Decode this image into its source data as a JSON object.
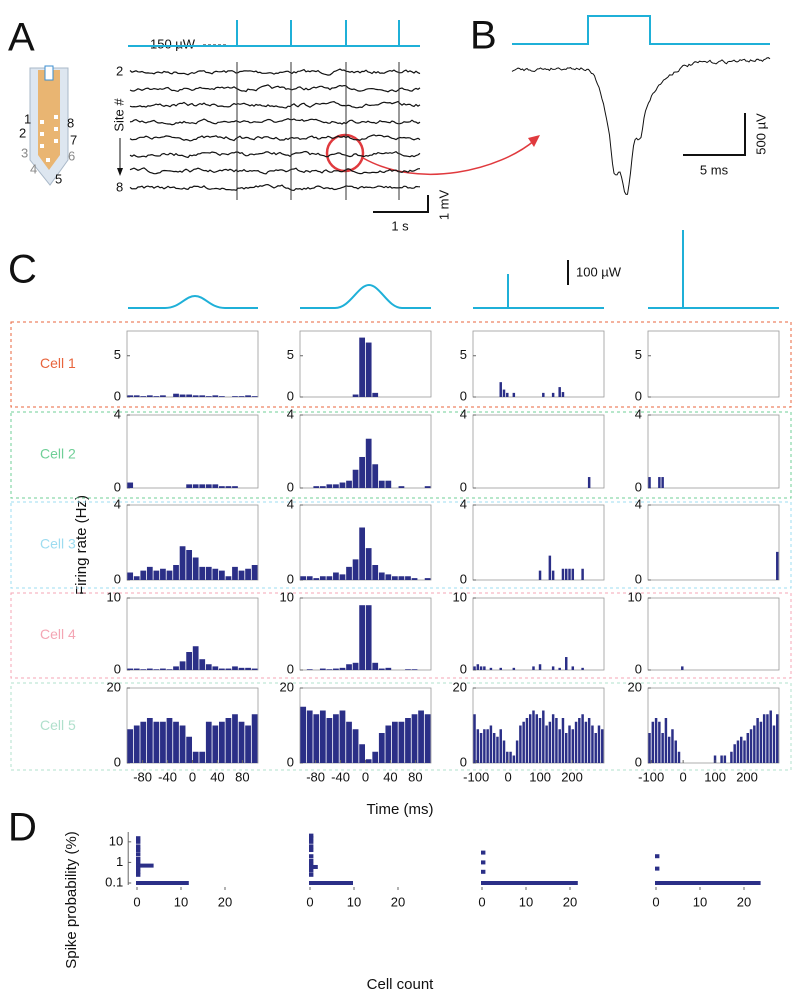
{
  "figure": {
    "letters": [
      "A",
      "B",
      "C",
      "D"
    ],
    "panel_a": {
      "power_label": "150 µW",
      "site_label": "Site #",
      "first_site": "2",
      "last_site": "8",
      "probe_sites": [
        "1",
        "2",
        "3",
        "4",
        "5",
        "6",
        "7",
        "8"
      ],
      "time_scale": "1 s",
      "volt_scale": "1 mV"
    },
    "panel_b": {
      "volt_scale": "500 µV",
      "time_scale": "5 ms"
    },
    "stimulus_scale": "100 µW"
  },
  "chart_data": [
    {
      "type": "bar",
      "ylabel": "Firing rate (Hz)",
      "xlabel": "Time (ms)",
      "color": "#2b2f87",
      "columns": [
        {
          "xlim": [
            -105,
            105
          ],
          "xticks": [
            -80,
            -40,
            0,
            40,
            80
          ]
        },
        {
          "xlim": [
            -105,
            105
          ],
          "xticks": [
            -80,
            -40,
            0,
            40,
            80
          ]
        },
        {
          "xlim": [
            -110,
            300
          ],
          "xticks": [
            -100,
            0,
            100,
            200
          ]
        },
        {
          "xlim": [
            -110,
            300
          ],
          "xticks": [
            -100,
            0,
            100,
            200
          ]
        }
      ],
      "rows": [
        {
          "name": "Cell 1",
          "color": "#e8643c",
          "ylim": [
            0,
            8
          ],
          "yticks": [
            0,
            5
          ],
          "values": [
            [
              0.2,
              0.2,
              0.1,
              0.2,
              0.1,
              0.2,
              0,
              0.4,
              0.3,
              0.3,
              0.2,
              0.2,
              0.1,
              0.2,
              0.1,
              0,
              0.1,
              0.1,
              0.2,
              0.1
            ],
            [
              0,
              0,
              0,
              0,
              0,
              0,
              0,
              0,
              0.3,
              7.2,
              6.6,
              0.5,
              0,
              0,
              0,
              0,
              0,
              0,
              0,
              0
            ],
            [
              0,
              0,
              0,
              0,
              0,
              0,
              0,
              0,
              1.8,
              0.9,
              0.5,
              0,
              0.5,
              0,
              0,
              0,
              0,
              0,
              0,
              0,
              0,
              0.5,
              0,
              0,
              0.5,
              0,
              1.2,
              0.6,
              0,
              0,
              0,
              0,
              0,
              0,
              0,
              0,
              0,
              0,
              0,
              0
            ],
            [
              0,
              0,
              0,
              0,
              0,
              0,
              0,
              0,
              0,
              0,
              0,
              0,
              0,
              0,
              0,
              0,
              0,
              0,
              0,
              0,
              0,
              0,
              0,
              0,
              0,
              0,
              0,
              0,
              0,
              0,
              0,
              0,
              0,
              0,
              0,
              0,
              0,
              0,
              0,
              0
            ]
          ]
        },
        {
          "name": "Cell 2",
          "color": "#6fcf97",
          "ylim": [
            0,
            4
          ],
          "yticks": [
            0,
            4
          ],
          "values": [
            [
              0.3,
              0,
              0,
              0,
              0,
              0,
              0,
              0,
              0,
              0.2,
              0.2,
              0.2,
              0.2,
              0.2,
              0.1,
              0.1,
              0.1,
              0,
              0,
              0
            ],
            [
              0,
              0,
              0.1,
              0.1,
              0.2,
              0.2,
              0.3,
              0.4,
              1.0,
              1.7,
              2.7,
              1.3,
              0.4,
              0.4,
              0,
              0.1,
              0,
              0,
              0,
              0.1
            ],
            [
              0,
              0,
              0,
              0,
              0,
              0,
              0,
              0,
              0,
              0,
              0,
              0,
              0,
              0,
              0,
              0,
              0,
              0,
              0,
              0,
              0,
              0,
              0,
              0,
              0,
              0,
              0,
              0,
              0,
              0,
              0,
              0,
              0,
              0,
              0,
              0.6,
              0,
              0,
              0,
              0
            ],
            [
              0.6,
              0,
              0,
              0.6,
              0.6,
              0,
              0,
              0,
              0,
              0,
              0,
              0,
              0,
              0,
              0,
              0,
              0,
              0,
              0,
              0,
              0,
              0,
              0,
              0,
              0,
              0,
              0,
              0,
              0,
              0,
              0,
              0,
              0,
              0,
              0,
              0,
              0,
              0,
              0,
              0
            ]
          ]
        },
        {
          "name": "Cell 3",
          "color": "#9ddcf0",
          "ylim": [
            0,
            4
          ],
          "yticks": [
            0,
            4
          ],
          "values": [
            [
              0.4,
              0.2,
              0.5,
              0.7,
              0.5,
              0.6,
              0.5,
              0.8,
              1.8,
              1.6,
              1.2,
              0.7,
              0.7,
              0.6,
              0.5,
              0.2,
              0.7,
              0.5,
              0.6,
              0.8
            ],
            [
              0.2,
              0.2,
              0.1,
              0.2,
              0.2,
              0.4,
              0.3,
              0.7,
              1.1,
              2.8,
              1.7,
              0.8,
              0.4,
              0.3,
              0.2,
              0.2,
              0.2,
              0.1,
              0,
              0.1
            ],
            [
              0,
              0,
              0,
              0,
              0,
              0,
              0,
              0,
              0,
              0,
              0,
              0,
              0,
              0,
              0,
              0,
              0,
              0,
              0,
              0,
              0.5,
              0,
              0,
              1.3,
              0.5,
              0,
              0,
              0.6,
              0.6,
              0.6,
              0.6,
              0,
              0,
              0.6,
              0,
              0,
              0,
              0,
              0,
              0
            ],
            [
              0,
              0,
              0,
              0,
              0,
              0,
              0,
              0,
              0,
              0,
              0,
              0,
              0,
              0,
              0,
              0,
              0,
              0,
              0,
              0,
              0,
              0,
              0,
              0,
              0,
              0,
              0,
              0,
              0,
              0,
              0,
              0,
              0,
              0,
              0,
              0,
              0,
              0,
              0,
              1.5
            ]
          ]
        },
        {
          "name": "Cell 4",
          "color": "#f4a6b4",
          "ylim": [
            0,
            10
          ],
          "yticks": [
            0,
            10
          ],
          "values": [
            [
              0.2,
              0.2,
              0.1,
              0.2,
              0.1,
              0.2,
              0.1,
              0.5,
              1.2,
              2.5,
              3.3,
              1.5,
              0.8,
              0.5,
              0.2,
              0.2,
              0.5,
              0.3,
              0.3,
              0.2
            ],
            [
              0,
              0.1,
              0,
              0.2,
              0.1,
              0.2,
              0.3,
              0.8,
              1.0,
              9.0,
              9.0,
              1.0,
              0.2,
              0.3,
              0,
              0,
              0.1,
              0.1,
              0,
              0
            ],
            [
              0.5,
              0.8,
              0.5,
              0.5,
              0,
              0.3,
              0,
              0,
              0.3,
              0,
              0,
              0,
              0.3,
              0,
              0,
              0,
              0,
              0,
              0.5,
              0,
              0.8,
              0,
              0,
              0,
              0.5,
              0,
              0.3,
              0,
              1.8,
              0,
              0.5,
              0,
              0,
              0.3,
              0,
              0,
              0,
              0,
              0,
              0
            ],
            [
              0,
              0,
              0,
              0,
              0,
              0,
              0,
              0,
              0,
              0,
              0.5,
              0,
              0,
              0,
              0,
              0,
              0,
              0,
              0,
              0,
              0,
              0,
              0,
              0,
              0,
              0,
              0,
              0,
              0,
              0,
              0,
              0,
              0,
              0,
              0,
              0,
              0,
              0,
              0,
              0
            ]
          ]
        },
        {
          "name": "Cell 5",
          "color": "#b0e0cc",
          "ylim": [
            0,
            20
          ],
          "yticks": [
            0,
            20
          ],
          "values": [
            [
              9,
              10,
              11,
              12,
              11,
              11,
              12,
              11,
              10,
              7,
              3,
              3,
              11,
              10,
              11,
              12,
              13,
              11,
              10,
              13
            ],
            [
              15,
              14,
              13,
              14,
              12,
              13,
              14,
              11,
              9,
              5,
              1,
              3,
              8,
              10,
              11,
              11,
              12,
              13,
              14,
              13
            ],
            [
              13,
              9,
              8,
              9,
              9,
              10,
              8,
              7,
              9,
              6,
              3,
              3,
              2,
              6,
              10,
              11,
              12,
              13,
              14,
              13,
              12,
              14,
              10,
              11,
              13,
              12,
              9,
              12,
              8,
              10,
              9,
              11,
              12,
              13,
              11,
              12,
              10,
              8,
              10,
              9
            ],
            [
              8,
              11,
              12,
              11,
              8,
              12,
              7,
              9,
              6,
              3,
              0,
              0,
              0,
              0,
              0,
              0,
              0,
              0,
              0,
              0,
              2,
              0,
              2,
              2,
              0,
              3,
              5,
              6,
              7,
              6,
              8,
              9,
              10,
              12,
              11,
              13,
              13,
              14,
              10,
              13
            ]
          ]
        }
      ]
    },
    {
      "type": "barh",
      "ylabel": "Spike probability (%)",
      "xlabel": "Cell count",
      "color": "#2b2f87",
      "log_y": true,
      "ylim": [
        0.08,
        30
      ],
      "yticks": [
        0.1,
        1,
        10
      ],
      "xlim": [
        -2,
        25
      ],
      "xticks": [
        0,
        10,
        20
      ],
      "panels": [
        {
          "y": [
            15,
            10,
            6,
            4,
            2.5,
            1.5,
            1,
            0.7,
            0.5,
            0.35,
            0.25,
            0.1
          ],
          "values": [
            1,
            1,
            1,
            1,
            1,
            1,
            1,
            4,
            1,
            1,
            1,
            12
          ]
        },
        {
          "y": [
            20,
            15,
            10,
            6,
            4,
            2,
            1.2,
            0.8,
            0.6,
            0.4,
            0.25,
            0.1
          ],
          "values": [
            1,
            1,
            1,
            1,
            1,
            1,
            1,
            1,
            2,
            1,
            1,
            10
          ]
        },
        {
          "y": [
            3,
            1,
            0.35,
            0.1
          ],
          "values": [
            1,
            1,
            1,
            22
          ]
        },
        {
          "y": [
            2,
            0.5,
            0.1
          ],
          "values": [
            1,
            1,
            24
          ]
        }
      ]
    }
  ]
}
